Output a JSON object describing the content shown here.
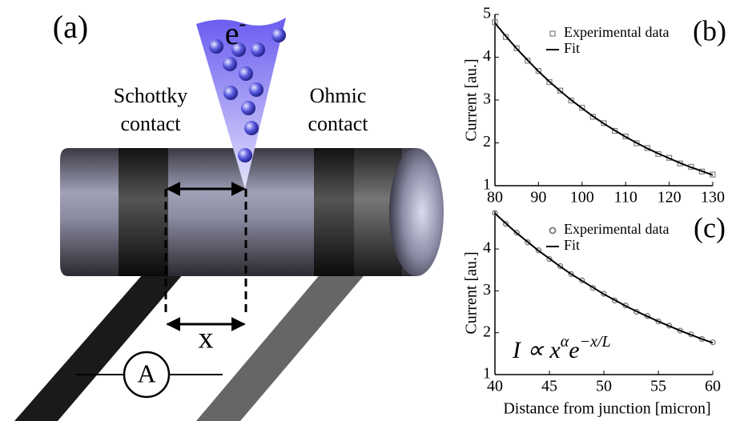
{
  "panel_a": {
    "label": "(a)",
    "electron": "e",
    "electron_sup": "-",
    "left_contact": [
      "Schottky",
      "contact"
    ],
    "right_contact": [
      "Ohmic",
      "contact"
    ],
    "distance": "x",
    "meter": "A"
  },
  "chart_data": [
    {
      "type": "line",
      "panel_label": "(b)",
      "y_label": "Current [au.]",
      "x": [
        80,
        82.5,
        85,
        87.5,
        90,
        92.5,
        95,
        97.5,
        100,
        102.5,
        105,
        107.5,
        110,
        112.5,
        115,
        117.5,
        120,
        122.5,
        125,
        127.5,
        130
      ],
      "series": [
        {
          "name": "Experimental data",
          "color": "#888888",
          "marker": "square",
          "values": [
            4.82,
            4.47,
            4.21,
            3.92,
            3.68,
            3.42,
            3.22,
            2.99,
            2.82,
            2.61,
            2.46,
            2.28,
            2.15,
            1.99,
            1.88,
            1.74,
            1.65,
            1.52,
            1.44,
            1.33,
            1.26
          ]
        },
        {
          "name": "Fit",
          "color": "#000000",
          "marker": "line",
          "values": [
            4.8,
            4.49,
            4.2,
            3.93,
            3.67,
            3.43,
            3.21,
            3.0,
            2.81,
            2.62,
            2.45,
            2.29,
            2.14,
            2.0,
            1.87,
            1.75,
            1.64,
            1.53,
            1.43,
            1.34,
            1.25
          ]
        }
      ],
      "xlim": [
        80,
        130
      ],
      "xticks": [
        80,
        90,
        100,
        110,
        120,
        130
      ],
      "ylim": [
        1,
        5
      ],
      "yticks": [
        1,
        2,
        3,
        4,
        5
      ]
    },
    {
      "type": "line",
      "panel_label": "(c)",
      "y_label": "Current [au.]",
      "x_label": "Distance from junction [micron]",
      "annotation": {
        "base": "I ∝ x",
        "exp1": "α",
        "e": "e",
        "exp2": "−x/L"
      },
      "x": [
        40,
        41,
        42,
        43,
        44,
        45,
        46,
        47,
        48,
        49,
        50,
        51,
        52,
        53,
        54,
        55,
        56,
        57,
        58,
        59,
        60
      ],
      "series": [
        {
          "name": "Experimental data",
          "color": "#777777",
          "marker": "circle",
          "values": [
            4.86,
            4.6,
            4.39,
            4.16,
            3.97,
            3.76,
            3.59,
            3.4,
            3.25,
            3.07,
            2.93,
            2.77,
            2.65,
            2.5,
            2.4,
            2.27,
            2.17,
            2.05,
            1.96,
            1.85,
            1.77
          ]
        },
        {
          "name": "Fit",
          "color": "#000000",
          "marker": "line",
          "values": [
            4.85,
            4.61,
            4.38,
            4.17,
            3.96,
            3.77,
            3.58,
            3.4,
            3.24,
            3.08,
            2.92,
            2.78,
            2.64,
            2.51,
            2.39,
            2.27,
            2.16,
            2.05,
            1.95,
            1.85,
            1.76
          ]
        }
      ],
      "xlim": [
        40,
        60
      ],
      "xticks": [
        40,
        45,
        50,
        55,
        60
      ],
      "ylim": [
        1,
        4.9
      ],
      "yticks": [
        1,
        2,
        3,
        4
      ]
    }
  ]
}
